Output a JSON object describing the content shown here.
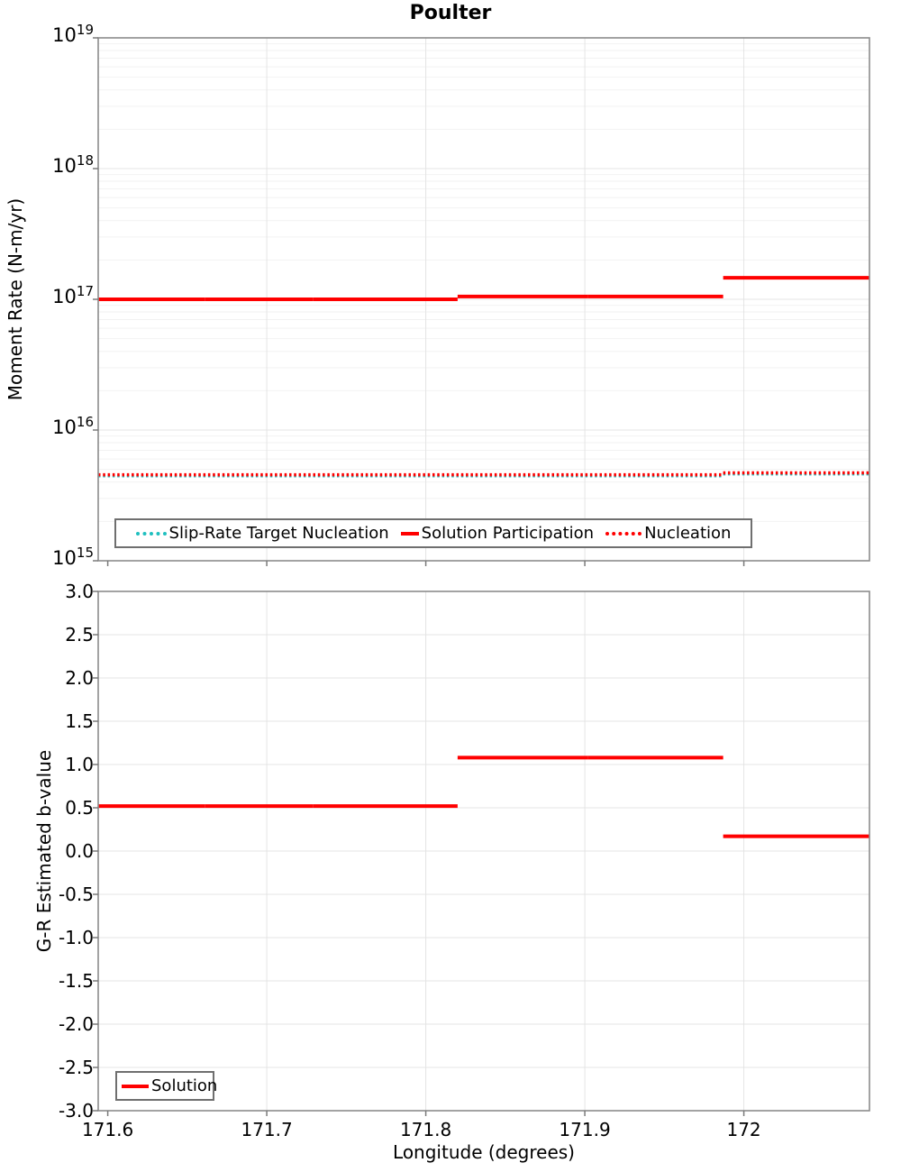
{
  "title": "Poulter",
  "chart_data": [
    {
      "type": "line",
      "subplot": "moment-rate",
      "title": "Poulter",
      "ylabel": "Moment Rate (N-m/yr)",
      "xlabel": "",
      "y_scale": "log",
      "y_range": [
        1000000000000000.0,
        1e+19
      ],
      "y_ticks": [
        {
          "base": "10",
          "exp": "19",
          "value": 1e+19
        },
        {
          "base": "10",
          "exp": "18",
          "value": 1e+18
        },
        {
          "base": "10",
          "exp": "17",
          "value": 1e+17
        },
        {
          "base": "10",
          "exp": "16",
          "value": 1e+16
        },
        {
          "base": "10",
          "exp": "15",
          "value": 1000000000000000.0
        }
      ],
      "x_range": [
        171.594,
        172.079
      ],
      "x_ticks": [
        171.6,
        171.7,
        171.8,
        171.9,
        172
      ],
      "grid": true,
      "legend": {
        "position": "inside-bottom",
        "items": [
          {
            "label": "Slip-Rate Target Nucleation",
            "color": "#1fbfbf",
            "line_style": "dotted"
          },
          {
            "label": "Solution Participation",
            "color": "#ff0000",
            "line_style": "solid"
          },
          {
            "label": "Nucleation",
            "color": "#ff0000",
            "line_style": "dotted"
          }
        ]
      },
      "series": [
        {
          "name": "Slip-Rate Target Nucleation",
          "color": "#1fbfbf",
          "line_style": "dotted",
          "width": 3,
          "segments": [
            {
              "x0": 171.594,
              "x1": 171.987,
              "y": 4450000000000000.0
            },
            {
              "x0": 171.987,
              "x1": 172.079,
              "y": 4600000000000000.0
            }
          ]
        },
        {
          "name": "Nucleation",
          "color": "#ff0000",
          "line_style": "dotted",
          "width": 3.5,
          "segments": [
            {
              "x0": 171.594,
              "x1": 171.987,
              "y": 4550000000000000.0
            },
            {
              "x0": 171.987,
              "x1": 172.079,
              "y": 4700000000000000.0
            }
          ]
        },
        {
          "name": "Solution Participation",
          "color": "#ff0000",
          "line_style": "solid",
          "width": 4,
          "segments": [
            {
              "x0": 171.594,
              "x1": 171.661,
              "y": 1e+17
            },
            {
              "x0": 171.661,
              "x1": 171.729,
              "y": 1e+17
            },
            {
              "x0": 171.729,
              "x1": 171.82,
              "y": 1e+17
            },
            {
              "x0": 171.82,
              "x1": 171.902,
              "y": 1.05e+17
            },
            {
              "x0": 171.902,
              "x1": 171.987,
              "y": 1.05e+17
            },
            {
              "x0": 171.987,
              "x1": 172.079,
              "y": 1.46e+17
            }
          ]
        }
      ]
    },
    {
      "type": "line",
      "subplot": "b-value",
      "ylabel": "G-R Estimated b-value",
      "xlabel": "Longitude (degrees)",
      "y_scale": "linear",
      "y_range": [
        -3.0,
        3.0
      ],
      "y_ticks": [
        {
          "label": "3.0",
          "value": 3.0
        },
        {
          "label": "2.5",
          "value": 2.5
        },
        {
          "label": "2.0",
          "value": 2.0
        },
        {
          "label": "1.5",
          "value": 1.5
        },
        {
          "label": "1.0",
          "value": 1.0
        },
        {
          "label": "0.5",
          "value": 0.5
        },
        {
          "label": "0.0",
          "value": 0.0
        },
        {
          "label": "-0.5",
          "value": -0.5
        },
        {
          "label": "-1.0",
          "value": -1.0
        },
        {
          "label": "-1.5",
          "value": -1.5
        },
        {
          "label": "-2.0",
          "value": -2.0
        },
        {
          "label": "-2.5",
          "value": -2.5
        },
        {
          "label": "-3.0",
          "value": -3.0
        }
      ],
      "x_range": [
        171.594,
        172.079
      ],
      "x_ticks": [
        {
          "label": "171.6",
          "value": 171.6
        },
        {
          "label": "171.7",
          "value": 171.7
        },
        {
          "label": "171.8",
          "value": 171.8
        },
        {
          "label": "171.9",
          "value": 171.9
        },
        {
          "label": "172",
          "value": 172
        }
      ],
      "grid": true,
      "legend": {
        "position": "inside-bottom-left",
        "items": [
          {
            "label": "Solution",
            "color": "#ff0000",
            "line_style": "solid"
          }
        ]
      },
      "series": [
        {
          "name": "Solution",
          "color": "#ff0000",
          "line_style": "solid",
          "width": 4,
          "segments": [
            {
              "x0": 171.594,
              "x1": 171.661,
              "y": 0.52
            },
            {
              "x0": 171.661,
              "x1": 171.729,
              "y": 0.52
            },
            {
              "x0": 171.729,
              "x1": 171.82,
              "y": 0.52
            },
            {
              "x0": 171.82,
              "x1": 171.902,
              "y": 1.08
            },
            {
              "x0": 171.902,
              "x1": 171.987,
              "y": 1.08
            },
            {
              "x0": 171.987,
              "x1": 172.079,
              "y": 0.17
            }
          ]
        }
      ]
    }
  ],
  "colors": {
    "solution": "#ff0000",
    "slip_rate_target": "#1fbfbf",
    "grid_major": "#e4e4e4",
    "grid_minor": "#f2f2f2",
    "spine": "#8c8c8c",
    "tick": "#7a7a7a",
    "legend_border": "#6f6f6f"
  }
}
